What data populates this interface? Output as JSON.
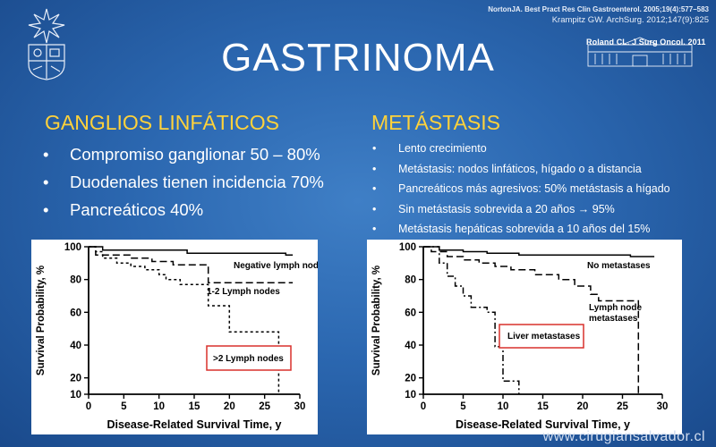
{
  "slide": {
    "title": "GASTRINOMA",
    "references": [
      "NortonJA. Best Pract Res Clin Gastroenterol. 2005;19(4):577–583",
      "Krampitz GW. ArchSurg. 2012;147(9):825",
      "Roland CL. J Surg Oncol. 2011"
    ],
    "left": {
      "heading": "GANGLIOS LINFÁTICOS",
      "items": [
        "Compromiso ganglionar  50 – 80%",
        "Duodenales tienen incidencia  70%",
        "Pancreáticos 40%"
      ]
    },
    "right": {
      "heading": "METÁSTASIS",
      "items": [
        "Lento crecimiento",
        "Metástasis: nodos linfáticos, hígado o a distancia",
        "Pancreáticos más agresivos: 50% metástasis a hígado",
        "Sin metástasis sobrevida a 20 años → 95%",
        "Metástasis hepáticas sobrevida a 10 años del 15%"
      ]
    },
    "footer": "www.cirugiansalvador.cl",
    "colors": {
      "heading": "#ffd23a",
      "background": "#2b67b0",
      "highlight_box": "#d9302c"
    }
  },
  "chart_data": [
    {
      "type": "line",
      "title": "",
      "xlabel": "Disease-Related Survival Time, y",
      "ylabel": "Survival Probability, %",
      "xlim": [
        0,
        30
      ],
      "ylim": [
        10,
        100
      ],
      "xticks": [
        0,
        5,
        10,
        15,
        20,
        25,
        30
      ],
      "yticks": [
        10,
        20,
        40,
        60,
        80,
        100
      ],
      "grid": false,
      "series": [
        {
          "name": "Negative lymph nodes",
          "style": "solid",
          "points": [
            [
              0,
              100
            ],
            [
              2,
              100
            ],
            [
              2,
              98
            ],
            [
              14,
              98
            ],
            [
              14,
              96
            ],
            [
              28,
              96
            ],
            [
              28,
              95
            ],
            [
              29,
              95
            ]
          ]
        },
        {
          "name": "1-2 Lymph nodes",
          "style": "dashed",
          "points": [
            [
              0,
              100
            ],
            [
              1,
              100
            ],
            [
              1,
              95
            ],
            [
              6,
              95
            ],
            [
              6,
              93
            ],
            [
              9,
              93
            ],
            [
              9,
              91
            ],
            [
              12,
              91
            ],
            [
              12,
              89
            ],
            [
              17,
              89
            ],
            [
              17,
              78
            ],
            [
              29,
              78
            ]
          ]
        },
        {
          "name": ">2 Lymph nodes",
          "style": "dotted",
          "points": [
            [
              0,
              100
            ],
            [
              1,
              100
            ],
            [
              1,
              97
            ],
            [
              2,
              97
            ],
            [
              2,
              93
            ],
            [
              4,
              93
            ],
            [
              4,
              90
            ],
            [
              6,
              90
            ],
            [
              6,
              88
            ],
            [
              8,
              88
            ],
            [
              8,
              86
            ],
            [
              10,
              86
            ],
            [
              10,
              83
            ],
            [
              11,
              83
            ],
            [
              11,
              80
            ],
            [
              13,
              80
            ],
            [
              13,
              77
            ],
            [
              17,
              77
            ],
            [
              17,
              64
            ],
            [
              20,
              64
            ],
            [
              20,
              48
            ],
            [
              27,
              48
            ],
            [
              27,
              10
            ]
          ]
        }
      ],
      "annotations": [
        "Negative lymph nodes",
        "1-2 Lymph nodes",
        ">2 Lymph nodes"
      ]
    },
    {
      "type": "line",
      "title": "",
      "xlabel": "Disease-Related Survival Time, y",
      "ylabel": "Survival Probability, %",
      "xlim": [
        0,
        30
      ],
      "ylim": [
        10,
        100
      ],
      "xticks": [
        0,
        5,
        10,
        15,
        20,
        25,
        30
      ],
      "yticks": [
        10,
        20,
        40,
        60,
        80,
        100
      ],
      "grid": false,
      "series": [
        {
          "name": "No metastases",
          "style": "solid",
          "points": [
            [
              0,
              100
            ],
            [
              2,
              100
            ],
            [
              2,
              98
            ],
            [
              5,
              98
            ],
            [
              5,
              97
            ],
            [
              8,
              97
            ],
            [
              8,
              96
            ],
            [
              12,
              96
            ],
            [
              12,
              95
            ],
            [
              26,
              95
            ],
            [
              26,
              94
            ],
            [
              29,
              94
            ]
          ]
        },
        {
          "name": "Lymph node metastases",
          "style": "dashed",
          "points": [
            [
              0,
              100
            ],
            [
              1,
              100
            ],
            [
              1,
              97
            ],
            [
              3,
              97
            ],
            [
              3,
              94
            ],
            [
              5,
              94
            ],
            [
              5,
              92
            ],
            [
              7,
              92
            ],
            [
              7,
              90
            ],
            [
              9,
              90
            ],
            [
              9,
              88
            ],
            [
              11,
              88
            ],
            [
              11,
              86
            ],
            [
              14,
              86
            ],
            [
              14,
              83
            ],
            [
              17,
              83
            ],
            [
              17,
              80
            ],
            [
              19,
              80
            ],
            [
              19,
              76
            ],
            [
              21,
              76
            ],
            [
              21,
              71
            ],
            [
              22,
              71
            ],
            [
              22,
              67
            ],
            [
              27,
              67
            ],
            [
              27,
              10
            ]
          ]
        },
        {
          "name": "Liver metastases",
          "style": "dashdot",
          "points": [
            [
              0,
              100
            ],
            [
              2,
              100
            ],
            [
              2,
              90
            ],
            [
              3,
              90
            ],
            [
              3,
              82
            ],
            [
              4,
              82
            ],
            [
              4,
              76
            ],
            [
              5,
              76
            ],
            [
              5,
              70
            ],
            [
              6,
              70
            ],
            [
              6,
              63
            ],
            [
              8,
              63
            ],
            [
              8,
              60
            ],
            [
              9,
              60
            ],
            [
              9,
              39
            ],
            [
              10,
              39
            ],
            [
              10,
              18
            ],
            [
              12,
              18
            ],
            [
              12,
              10
            ]
          ]
        }
      ],
      "annotations": [
        "No metastases",
        "Lymph node metastases",
        "Liver metastases"
      ]
    }
  ]
}
